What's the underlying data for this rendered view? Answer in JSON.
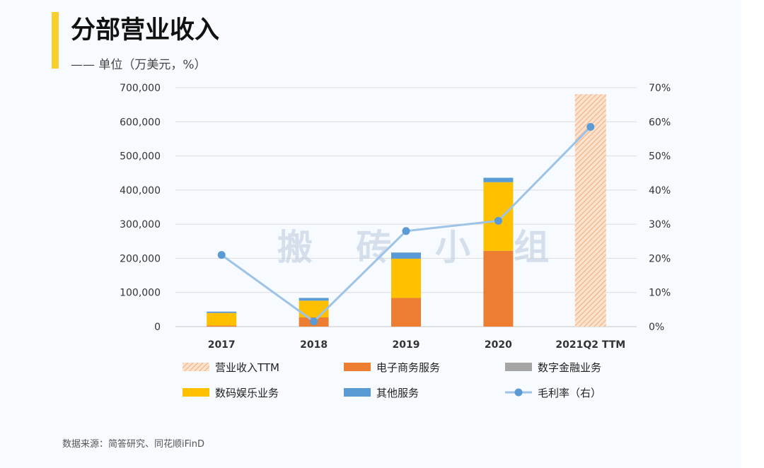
{
  "header": {
    "title": "分部营业收入",
    "subtitle": "—— 单位（万美元，%）"
  },
  "watermark": "搬 砖 小 组",
  "source": "数据来源：简答研究、同花顺iFinD",
  "colors": {
    "ttm": "#f4b183",
    "ecommerce": "#ed7d31",
    "fintech": "#a5a5a5",
    "entertainment": "#ffc000",
    "other": "#5b9bd5",
    "margin": "#9dc3e6",
    "margin_dot": "#5b9bd5"
  },
  "chart_data": {
    "type": "bar",
    "stacked": true,
    "categories": [
      "2017",
      "2018",
      "2019",
      "2020",
      "2021Q2 TTM"
    ],
    "y_left": {
      "min": 0,
      "max": 700000,
      "step": 100000,
      "tick_labels": [
        "0",
        "100,000",
        "200,000",
        "300,000",
        "400,000",
        "500,000",
        "600,000",
        "700,000"
      ]
    },
    "y_right": {
      "min": 0,
      "max": 70,
      "step": 10,
      "tick_labels": [
        "0%",
        "10%",
        "20%",
        "30%",
        "40%",
        "50%",
        "60%",
        "70%"
      ]
    },
    "series": [
      {
        "name": "营业收入TTM",
        "key": "ttm",
        "kind": "bar-hatched",
        "values": [
          null,
          null,
          null,
          null,
          681000
        ]
      },
      {
        "name": "电子商务服务",
        "key": "ecommerce",
        "kind": "bar",
        "values": [
          3000,
          27000,
          84000,
          222000,
          null
        ]
      },
      {
        "name": "数字金融业务",
        "key": "fintech",
        "kind": "bar",
        "values": [
          0,
          0,
          0,
          0,
          null
        ]
      },
      {
        "name": "数码娱乐业务",
        "key": "entertainment",
        "kind": "bar",
        "values": [
          37000,
          49000,
          115000,
          201000,
          null
        ]
      },
      {
        "name": "其他服务",
        "key": "other",
        "kind": "bar",
        "values": [
          4000,
          8000,
          18000,
          13000,
          null
        ]
      },
      {
        "name": "毛利率（右）",
        "key": "margin",
        "kind": "line",
        "axis": "right",
        "values": [
          21,
          1.5,
          28,
          31,
          58.5
        ]
      }
    ],
    "legend_order": [
      "营业收入TTM",
      "电子商务服务",
      "数字金融业务",
      "数码娱乐业务",
      "其他服务",
      "毛利率（右）"
    ],
    "grid": true,
    "legend_position": "bottom"
  }
}
